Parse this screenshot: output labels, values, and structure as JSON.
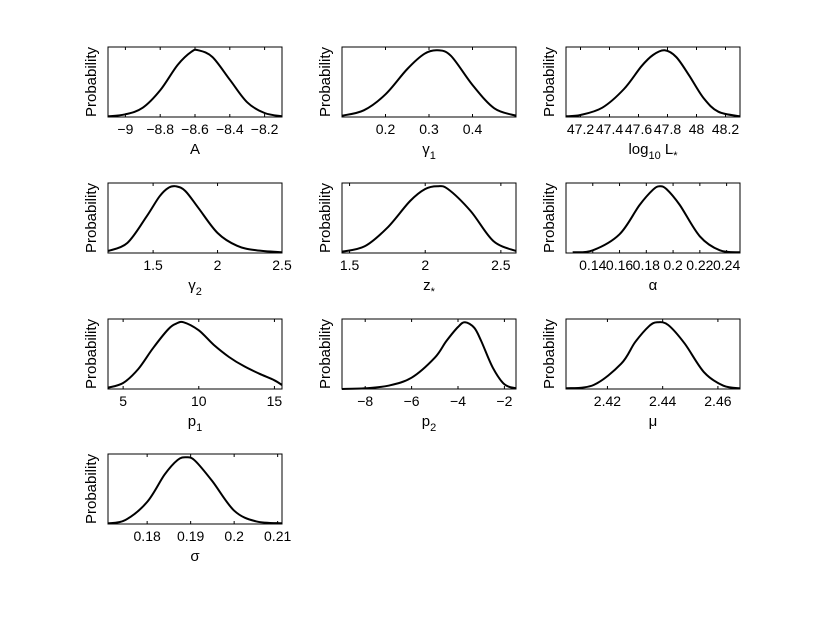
{
  "figure": {
    "ylabel_text": "Probability"
  },
  "chart_data": [
    {
      "type": "line",
      "xlabel": "A",
      "xlim": [
        -9.1,
        -8.1
      ],
      "xticks": [
        -9,
        -8.8,
        -8.6,
        -8.4,
        -8.2
      ],
      "xticklabels": [
        "−9",
        "−8.8",
        "−8.6",
        "−8.4",
        "−8.2"
      ],
      "ylim": [
        0,
        1.05
      ],
      "yticks": [],
      "series": [
        {
          "x": [
            -9.1,
            -9.0,
            -8.9,
            -8.8,
            -8.7,
            -8.62,
            -8.58,
            -8.5,
            -8.4,
            -8.3,
            -8.2,
            -8.1
          ],
          "y": [
            0.01,
            0.04,
            0.14,
            0.4,
            0.78,
            0.98,
            1.0,
            0.9,
            0.56,
            0.22,
            0.06,
            0.01
          ]
        }
      ]
    },
    {
      "type": "line",
      "xlabel": "γ",
      "xlabel_sub": "1",
      "xlim": [
        0.1,
        0.5
      ],
      "xticks": [
        0.2,
        0.3,
        0.4
      ],
      "xticklabels": [
        "0.2",
        "0.3",
        "0.4"
      ],
      "ylim": [
        0,
        1.05
      ],
      "yticks": [],
      "series": [
        {
          "x": [
            0.1,
            0.15,
            0.2,
            0.25,
            0.29,
            0.32,
            0.35,
            0.4,
            0.45,
            0.5
          ],
          "y": [
            0.02,
            0.1,
            0.34,
            0.72,
            0.95,
            1.0,
            0.92,
            0.48,
            0.13,
            0.02
          ]
        }
      ]
    },
    {
      "type": "line",
      "xlabel": "log",
      "xlabel_sub": "10",
      "xlabel_rest": " L",
      "xlabel_rest_sub": "*",
      "xlim": [
        47.1,
        48.3
      ],
      "xticks": [
        47.2,
        47.4,
        47.6,
        47.8,
        48,
        48.2
      ],
      "xticklabels": [
        "47.2",
        "47.4",
        "47.6",
        "47.8",
        "48",
        "48.2"
      ],
      "ylim": [
        0,
        1.05
      ],
      "yticks": [],
      "series": [
        {
          "x": [
            47.1,
            47.2,
            47.35,
            47.5,
            47.62,
            47.7,
            47.78,
            47.86,
            47.95,
            48.05,
            48.15,
            48.3
          ],
          "y": [
            0.01,
            0.03,
            0.14,
            0.42,
            0.76,
            0.93,
            1.0,
            0.9,
            0.62,
            0.28,
            0.08,
            0.01
          ]
        }
      ]
    },
    {
      "type": "line",
      "xlabel": "γ",
      "xlabel_sub": "2",
      "xlim": [
        1.15,
        2.5
      ],
      "xticks": [
        1.5,
        2,
        2.5
      ],
      "xticklabels": [
        "1.5",
        "2",
        "2.5"
      ],
      "ylim": [
        0,
        1.05
      ],
      "yticks": [],
      "series": [
        {
          "x": [
            1.15,
            1.3,
            1.45,
            1.55,
            1.62,
            1.68,
            1.75,
            1.85,
            2.0,
            2.15,
            2.3,
            2.5
          ],
          "y": [
            0.03,
            0.15,
            0.55,
            0.85,
            0.98,
            1.0,
            0.93,
            0.68,
            0.3,
            0.11,
            0.04,
            0.01
          ]
        }
      ]
    },
    {
      "type": "line",
      "xlabel": "z",
      "xlabel_sub": "*",
      "xlim": [
        1.45,
        2.6
      ],
      "xticks": [
        1.5,
        2,
        2.5
      ],
      "xticklabels": [
        "1.5",
        "2",
        "2.5"
      ],
      "ylim": [
        0,
        1.05
      ],
      "yticks": [],
      "series": [
        {
          "x": [
            1.45,
            1.6,
            1.75,
            1.9,
            2.0,
            2.08,
            2.15,
            2.3,
            2.45,
            2.6
          ],
          "y": [
            0.02,
            0.1,
            0.38,
            0.78,
            0.96,
            1.0,
            0.96,
            0.63,
            0.18,
            0.03
          ]
        }
      ]
    },
    {
      "type": "line",
      "xlabel": "α",
      "xlim": [
        0.12,
        0.25
      ],
      "xticks": [
        0.14,
        0.16,
        0.18,
        0.2,
        0.22,
        0.24
      ],
      "xticklabels": [
        "0.14",
        "0.16",
        "0.18",
        "0.2",
        "0.22",
        "0.24"
      ],
      "ylim": [
        0,
        1.05
      ],
      "yticks": [],
      "series": [
        {
          "x": [
            0.125,
            0.14,
            0.16,
            0.175,
            0.185,
            0.19,
            0.195,
            0.205,
            0.22,
            0.235,
            0.25
          ],
          "y": [
            0.01,
            0.04,
            0.28,
            0.72,
            0.95,
            1.0,
            0.96,
            0.72,
            0.25,
            0.04,
            0.01
          ]
        }
      ]
    },
    {
      "type": "line",
      "xlabel": "p",
      "xlabel_sub": "1",
      "xlim": [
        4,
        15.5
      ],
      "xticks": [
        5,
        10,
        15
      ],
      "xticklabels": [
        "5",
        "10",
        "15"
      ],
      "ylim": [
        0,
        1.05
      ],
      "yticks": [],
      "series": [
        {
          "x": [
            4.0,
            5.0,
            6.0,
            7.0,
            8.0,
            8.5,
            9.0,
            10.0,
            11.0,
            12.0,
            13.0,
            14.0,
            15.0,
            15.5
          ],
          "y": [
            0.02,
            0.09,
            0.3,
            0.62,
            0.9,
            0.98,
            1.0,
            0.88,
            0.66,
            0.48,
            0.34,
            0.23,
            0.13,
            0.06
          ]
        }
      ]
    },
    {
      "type": "line",
      "xlabel": "p",
      "xlabel_sub": "2",
      "xlim": [
        -9,
        -1.5
      ],
      "xticks": [
        -8,
        -6,
        -4,
        -2
      ],
      "xticklabels": [
        "−8",
        "−6",
        "−4",
        "−2"
      ],
      "ylim": [
        0,
        1.05
      ],
      "yticks": [],
      "series": [
        {
          "x": [
            -9.0,
            -8.0,
            -7.0,
            -6.0,
            -5.0,
            -4.5,
            -4.0,
            -3.7,
            -3.3,
            -3.0,
            -2.5,
            -2.0,
            -1.5
          ],
          "y": [
            0.0,
            0.01,
            0.05,
            0.17,
            0.47,
            0.72,
            0.93,
            1.0,
            0.92,
            0.72,
            0.32,
            0.07,
            0.01
          ]
        }
      ]
    },
    {
      "type": "line",
      "xlabel": "μ",
      "xlim": [
        2.405,
        2.468
      ],
      "xticks": [
        2.42,
        2.44,
        2.46
      ],
      "xticklabels": [
        "2.42",
        "2.44",
        "2.46"
      ],
      "ylim": [
        0,
        1.05
      ],
      "yticks": [],
      "series": [
        {
          "x": [
            2.405,
            2.415,
            2.425,
            2.43,
            2.435,
            2.438,
            2.442,
            2.448,
            2.455,
            2.462,
            2.468
          ],
          "y": [
            0.01,
            0.06,
            0.38,
            0.7,
            0.94,
            1.0,
            0.96,
            0.68,
            0.25,
            0.05,
            0.01
          ]
        }
      ]
    },
    {
      "type": "line",
      "xlabel": "σ",
      "xlim": [
        0.171,
        0.211
      ],
      "xticks": [
        0.18,
        0.19,
        0.2,
        0.21
      ],
      "xticklabels": [
        "0.18",
        "0.19",
        "0.2",
        "0.21"
      ],
      "ylim": [
        0,
        1.05
      ],
      "yticks": [],
      "series": [
        {
          "x": [
            0.171,
            0.175,
            0.18,
            0.184,
            0.187,
            0.189,
            0.191,
            0.195,
            0.2,
            0.205,
            0.211
          ],
          "y": [
            0.01,
            0.06,
            0.33,
            0.74,
            0.96,
            1.0,
            0.95,
            0.64,
            0.2,
            0.04,
            0.01
          ]
        }
      ]
    }
  ]
}
